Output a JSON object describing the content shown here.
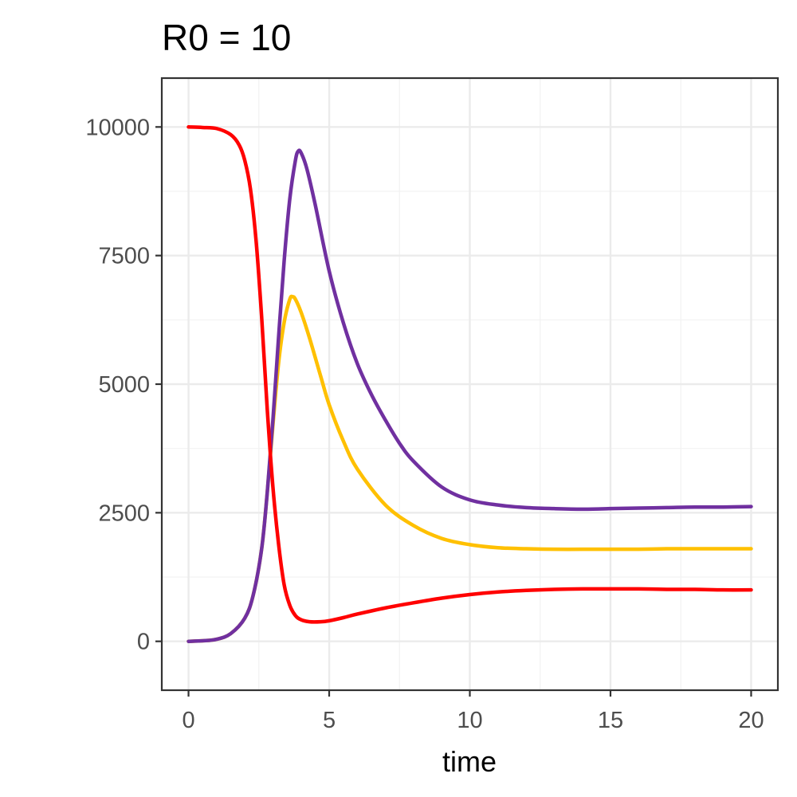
{
  "chart_data": {
    "type": "line",
    "title": "R0 = 10",
    "xlabel": "time",
    "ylabel": "",
    "xlim": [
      -0.95,
      20.95
    ],
    "ylim": [
      -950,
      10950
    ],
    "x_ticks": [
      0,
      5,
      10,
      15,
      20
    ],
    "y_ticks": [
      0,
      2500,
      5000,
      7500,
      10000
    ],
    "x_tick_labels": [
      "0",
      "5",
      "10",
      "15",
      "20"
    ],
    "y_tick_labels": [
      "0",
      "2500",
      "5000",
      "7500",
      "10000"
    ],
    "x_minor": [
      2.5,
      7.5,
      12.5,
      17.5
    ],
    "y_minor": [
      1250,
      3750,
      6250,
      8750
    ],
    "grid": true,
    "legend": "none",
    "series": [
      {
        "color": "#ff0000",
        "x": [
          0,
          0.5,
          1.0,
          1.5,
          1.8,
          2.0,
          2.2,
          2.4,
          2.6,
          2.8,
          3.0,
          3.2,
          3.4,
          3.6,
          3.8,
          4.0,
          4.3,
          4.7,
          5.0,
          5.5,
          6,
          7,
          8,
          9,
          10,
          11,
          12,
          13,
          14,
          15,
          16,
          17,
          18,
          19,
          20
        ],
        "y": [
          10000,
          9990,
          9970,
          9850,
          9650,
          9350,
          8800,
          7800,
          6300,
          4500,
          3000,
          1900,
          1100,
          700,
          500,
          420,
          380,
          380,
          400,
          460,
          530,
          650,
          750,
          840,
          910,
          960,
          990,
          1010,
          1020,
          1020,
          1020,
          1010,
          1010,
          1000,
          1000
        ]
      },
      {
        "color": "#ffc000",
        "x": [
          0,
          0.5,
          1.0,
          1.5,
          2.0,
          2.3,
          2.6,
          2.8,
          3.0,
          3.2,
          3.4,
          3.6,
          3.7,
          3.8,
          4.0,
          4.3,
          4.7,
          5.0,
          5.5,
          6,
          7,
          8,
          9,
          10,
          11,
          12,
          13,
          14,
          15,
          16,
          17,
          18,
          19,
          20
        ],
        "y": [
          0,
          10,
          40,
          150,
          450,
          900,
          1800,
          2900,
          4200,
          5400,
          6200,
          6650,
          6700,
          6650,
          6400,
          5900,
          5150,
          4600,
          3900,
          3350,
          2650,
          2250,
          2000,
          1880,
          1820,
          1800,
          1790,
          1790,
          1790,
          1790,
          1800,
          1800,
          1800,
          1800
        ]
      },
      {
        "color": "#7030a0",
        "x": [
          0,
          0.5,
          1.0,
          1.5,
          2.0,
          2.3,
          2.6,
          2.8,
          3.0,
          3.2,
          3.4,
          3.6,
          3.8,
          3.9,
          4.0,
          4.2,
          4.5,
          5.0,
          5.5,
          6,
          6.5,
          7,
          7.5,
          8,
          9,
          10,
          11,
          12,
          13,
          14,
          15,
          16,
          17,
          18,
          19,
          20
        ],
        "y": [
          0,
          10,
          40,
          150,
          450,
          900,
          1800,
          2900,
          4300,
          5900,
          7400,
          8600,
          9350,
          9530,
          9500,
          9200,
          8500,
          7200,
          6200,
          5400,
          4800,
          4300,
          3850,
          3500,
          3000,
          2750,
          2650,
          2600,
          2580,
          2570,
          2580,
          2590,
          2600,
          2610,
          2610,
          2620
        ]
      }
    ]
  }
}
